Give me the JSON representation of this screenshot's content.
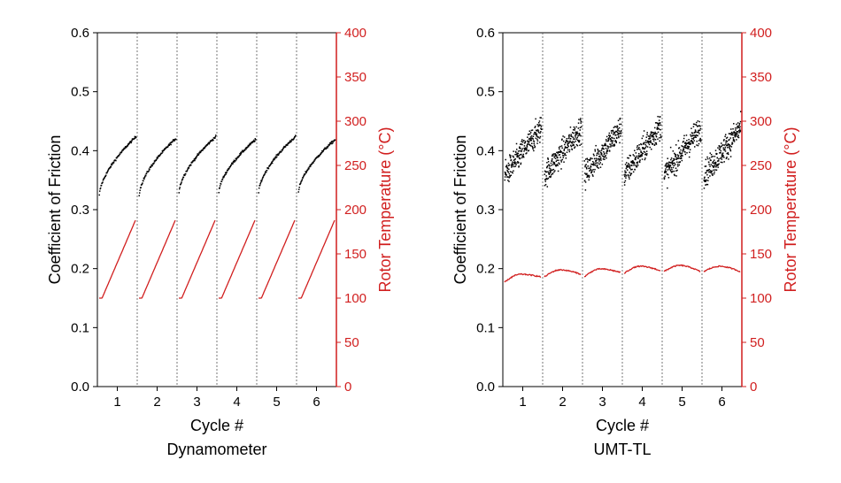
{
  "colors": {
    "cof": "#000000",
    "temp": "#d11f1f",
    "axis": "#000000",
    "divider": "#555555"
  },
  "chart_data": [
    {
      "type": "scatter",
      "subtitle": "Dynamometer",
      "xlabel": "Cycle #",
      "ylabel": "Coefficient of Friction",
      "y2label": "Rotor Temperature (°C)",
      "categories": [
        "1",
        "2",
        "3",
        "4",
        "5",
        "6"
      ],
      "ylim": [
        0,
        0.6
      ],
      "y2lim": [
        0,
        400
      ],
      "yticks": [
        "0.0",
        "0.1",
        "0.2",
        "0.3",
        "0.4",
        "0.5",
        "0.6"
      ],
      "y2ticks": [
        "0",
        "50",
        "100",
        "150",
        "200",
        "250",
        "300",
        "350",
        "400"
      ],
      "grid": false,
      "series": [
        {
          "name": "Coefficient of Friction",
          "axis": "left",
          "style": "points",
          "cycles": [
            {
              "start": 0.325,
              "end": 0.425,
              "shape": "concave",
              "noise": 0.002
            },
            {
              "start": 0.325,
              "end": 0.422,
              "shape": "concave",
              "noise": 0.002
            },
            {
              "start": 0.33,
              "end": 0.425,
              "shape": "concave",
              "noise": 0.002
            },
            {
              "start": 0.33,
              "end": 0.42,
              "shape": "concave",
              "noise": 0.002
            },
            {
              "start": 0.33,
              "end": 0.425,
              "shape": "concave",
              "noise": 0.002
            },
            {
              "start": 0.33,
              "end": 0.42,
              "shape": "concave",
              "noise": 0.002
            }
          ]
        },
        {
          "name": "Rotor Temperature (°C)",
          "axis": "right",
          "style": "line",
          "cycles": [
            {
              "start": 100,
              "end": 188,
              "shape": "ramp"
            },
            {
              "start": 100,
              "end": 188,
              "shape": "ramp"
            },
            {
              "start": 100,
              "end": 188,
              "shape": "ramp"
            },
            {
              "start": 100,
              "end": 188,
              "shape": "ramp"
            },
            {
              "start": 100,
              "end": 188,
              "shape": "ramp"
            },
            {
              "start": 100,
              "end": 188,
              "shape": "ramp"
            }
          ]
        }
      ]
    },
    {
      "type": "scatter",
      "subtitle": "UMT-TL",
      "xlabel": "Cycle #",
      "ylabel": "Coefficient of Friction",
      "y2label": "Rotor Temperature (°C)",
      "categories": [
        "1",
        "2",
        "3",
        "4",
        "5",
        "6"
      ],
      "ylim": [
        0,
        0.6
      ],
      "y2lim": [
        0,
        400
      ],
      "yticks": [
        "0.0",
        "0.1",
        "0.2",
        "0.3",
        "0.4",
        "0.5",
        "0.6"
      ],
      "y2ticks": [
        "0",
        "50",
        "100",
        "150",
        "200",
        "250",
        "300",
        "350",
        "400"
      ],
      "grid": false,
      "series": [
        {
          "name": "Coefficient of Friction",
          "axis": "left",
          "style": "points",
          "cycles": [
            {
              "start": 0.36,
              "end": 0.44,
              "shape": "linear",
              "noise": 0.022
            },
            {
              "start": 0.36,
              "end": 0.44,
              "shape": "linear",
              "noise": 0.022
            },
            {
              "start": 0.36,
              "end": 0.44,
              "shape": "linear",
              "noise": 0.022
            },
            {
              "start": 0.36,
              "end": 0.445,
              "shape": "linear",
              "noise": 0.022
            },
            {
              "start": 0.36,
              "end": 0.44,
              "shape": "linear",
              "noise": 0.022
            },
            {
              "start": 0.36,
              "end": 0.44,
              "shape": "linear",
              "noise": 0.022
            }
          ]
        },
        {
          "name": "Rotor Temperature (°C)",
          "axis": "right",
          "style": "line",
          "cycles": [
            {
              "start": 118,
              "peak": 127,
              "end": 124,
              "shape": "arc"
            },
            {
              "start": 124,
              "peak": 132,
              "end": 127,
              "shape": "arc"
            },
            {
              "start": 124,
              "peak": 133,
              "end": 129,
              "shape": "arc"
            },
            {
              "start": 128,
              "peak": 136,
              "end": 131,
              "shape": "arc"
            },
            {
              "start": 130,
              "peak": 137,
              "end": 130,
              "shape": "arc"
            },
            {
              "start": 130,
              "peak": 136,
              "end": 130,
              "shape": "arc"
            }
          ]
        }
      ]
    }
  ]
}
